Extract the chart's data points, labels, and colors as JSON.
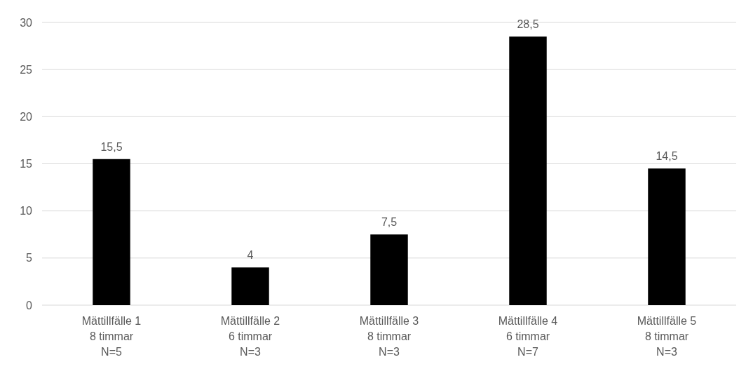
{
  "chart_data": {
    "type": "bar",
    "categories": [
      "Mättillfälle 1\n8 timmar\nN=5",
      "Mättillfälle 2\n6 timmar\nN=3",
      "Mättillfälle 3\n8 timmar\nN=3",
      "Mättillfälle 4\n6 timmar\nN=7",
      "Mättillfälle 5\n8 timmar\nN=3"
    ],
    "values": [
      15.5,
      4,
      7.5,
      28.5,
      14.5
    ],
    "value_labels": [
      "15,5",
      "4",
      "7,5",
      "28,5",
      "14,5"
    ],
    "color": "#000000",
    "ylim": [
      0,
      30
    ],
    "yticks": [
      0,
      5,
      10,
      15,
      20,
      25,
      30
    ],
    "grid": "y"
  }
}
